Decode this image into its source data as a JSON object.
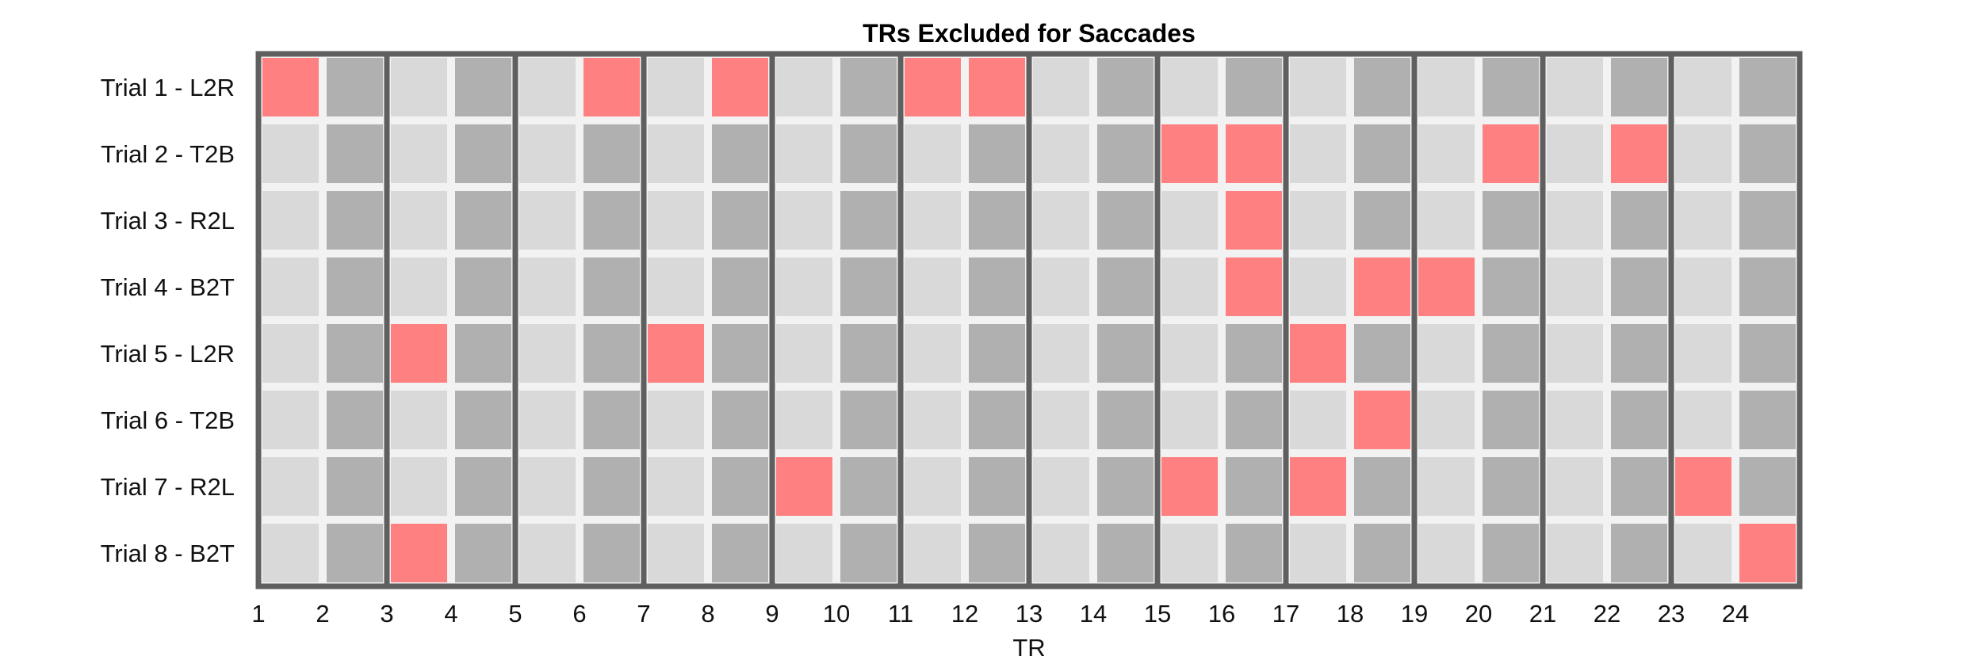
{
  "chart_data": {
    "type": "heatmap",
    "title": "TRs Excluded for Saccades",
    "xlabel": "TR",
    "ylabel": "",
    "x_ticks": [
      "1",
      "2",
      "3",
      "4",
      "5",
      "6",
      "7",
      "8",
      "9",
      "10",
      "11",
      "12",
      "13",
      "14",
      "15",
      "16",
      "17",
      "18",
      "19",
      "20",
      "21",
      "22",
      "23",
      "24"
    ],
    "rows": [
      "Trial 1 - L2R",
      "Trial 2 - T2B",
      "Trial 3 - R2L",
      "Trial 4 - B2T",
      "Trial 5 - L2R",
      "Trial 6 - T2B",
      "Trial 7 - R2L",
      "Trial 8 - B2T"
    ],
    "excluded": [
      [
        1,
        6,
        8,
        11,
        12
      ],
      [
        15,
        16,
        20,
        22
      ],
      [
        16
      ],
      [
        16,
        18,
        19
      ],
      [
        3,
        7,
        17
      ],
      [
        18
      ],
      [
        9,
        15,
        17,
        23
      ],
      [
        3,
        24
      ]
    ],
    "colors": {
      "excluded": "#ff8080",
      "odd_tr": "#d9d9d9",
      "even_tr": "#b0b0b0",
      "gap": "#f2f2f2",
      "block_divider": "#5f5f5f"
    },
    "block_dividers_every": 2,
    "grid": true
  }
}
